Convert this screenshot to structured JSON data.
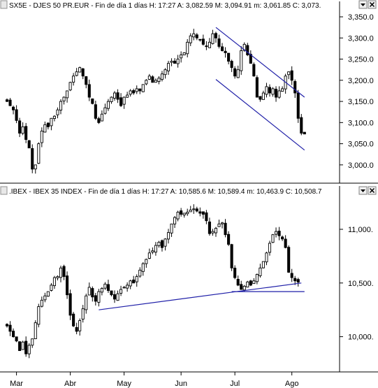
{
  "chart_data": [
    {
      "type": "candlestick",
      "title": "SX5E - DJES 50 PR.EUR - Fin de día 1 días  H: 17:27  A: 3,082.59  M: 3,094.91  m: 3,061.85  C: 3,073.",
      "y_ticks": [
        3000,
        3050,
        3100,
        3150,
        3200,
        3250,
        3300,
        3350
      ],
      "y_tick_labels": [
        "3,000.0",
        "3,050.0",
        "3,100.0",
        "3,150.0",
        "3,200.0",
        "3,250.0",
        "3,300.0",
        "3,350.0"
      ],
      "ylim": [
        2970,
        3360
      ],
      "grid": false,
      "closes": [
        3150,
        3140,
        3130,
        3105,
        3075,
        3090,
        3060,
        3040,
        2990,
        3000,
        3050,
        3080,
        3095,
        3090,
        3110,
        3115,
        3130,
        3150,
        3160,
        3175,
        3195,
        3210,
        3220,
        3230,
        3210,
        3190,
        3160,
        3145,
        3110,
        3100,
        3120,
        3135,
        3150,
        3160,
        3170,
        3155,
        3140,
        3160,
        3165,
        3175,
        3170,
        3180,
        3175,
        3190,
        3200,
        3210,
        3195,
        3200,
        3205,
        3215,
        3225,
        3240,
        3245,
        3240,
        3250,
        3260,
        3265,
        3290,
        3305,
        3310,
        3300,
        3295,
        3285,
        3280,
        3290,
        3310,
        3300,
        3280,
        3270,
        3265,
        3245,
        3230,
        3210,
        3225,
        3270,
        3285,
        3260,
        3240,
        3210,
        3160,
        3155,
        3170,
        3185,
        3170,
        3180,
        3160,
        3175,
        3180,
        3210,
        3220,
        3200,
        3170,
        3110,
        3075,
        3073
      ],
      "channels": [
        {
          "points": [
            [
              66,
              3325
            ],
            [
              94,
              3160
            ]
          ]
        },
        {
          "points": [
            [
              66,
              3202
            ],
            [
              94,
              3035
            ]
          ]
        }
      ],
      "x_labels": [
        {
          "label": "Mar",
          "index": 3
        },
        {
          "label": "Abr",
          "index": 20
        },
        {
          "label": "May",
          "index": 37
        },
        {
          "label": "Jun",
          "index": 55
        },
        {
          "label": "Jul",
          "index": 72
        },
        {
          "label": "Ago",
          "index": 90
        }
      ],
      "colors": {
        "up": "#ffffff",
        "down": "#000000",
        "channel": "#1f1fa8"
      }
    },
    {
      "type": "candlestick",
      "title": ".IBEX - IBEX 35 INDEX - Fin de día 1 días  H: 17:27  A: 10,585.6  M: 10,589.4  m: 10,463.9  C: 10,508.7",
      "y_ticks": [
        10000,
        10500,
        11000
      ],
      "y_tick_labels": [
        "10,000.",
        "10,500.",
        "11,000."
      ],
      "ylim": [
        9750,
        11280
      ],
      "grid": false,
      "closes": [
        10100,
        10050,
        10000,
        9960,
        9870,
        9950,
        9840,
        9920,
        9980,
        10130,
        10280,
        10340,
        10380,
        10420,
        10480,
        10550,
        10560,
        10640,
        10560,
        10390,
        10200,
        10100,
        10050,
        10150,
        10260,
        10380,
        10460,
        10370,
        10330,
        10420,
        10450,
        10490,
        10430,
        10390,
        10350,
        10400,
        10440,
        10460,
        10480,
        10520,
        10500,
        10560,
        10620,
        10680,
        10720,
        10780,
        10800,
        10850,
        10880,
        10830,
        10910,
        10970,
        11050,
        11110,
        11160,
        11140,
        11150,
        11160,
        11180,
        11190,
        11170,
        11150,
        11140,
        11080,
        10960,
        10980,
        11010,
        11050,
        11060,
        10950,
        10860,
        10640,
        10550,
        10480,
        10440,
        10470,
        10510,
        10480,
        10520,
        10580,
        10640,
        10700,
        10780,
        10870,
        10950,
        10980,
        10940,
        10910,
        10830,
        10600,
        10550,
        10520,
        10508
      ],
      "channels": [
        {
          "points": [
            [
              29,
              10250
            ],
            [
              93,
              10500
            ]
          ]
        },
        {
          "points": [
            [
              71,
              10420
            ],
            [
              94,
              10420
            ]
          ]
        }
      ],
      "x_labels": [
        {
          "label": "Mar",
          "index": 3
        },
        {
          "label": "Abr",
          "index": 20
        },
        {
          "label": "May",
          "index": 37
        },
        {
          "label": "Jun",
          "index": 55
        },
        {
          "label": "Jul",
          "index": 72
        },
        {
          "label": "Ago",
          "index": 90
        }
      ],
      "colors": {
        "up": "#ffffff",
        "down": "#000000",
        "channel": "#1f1fa8"
      }
    }
  ]
}
